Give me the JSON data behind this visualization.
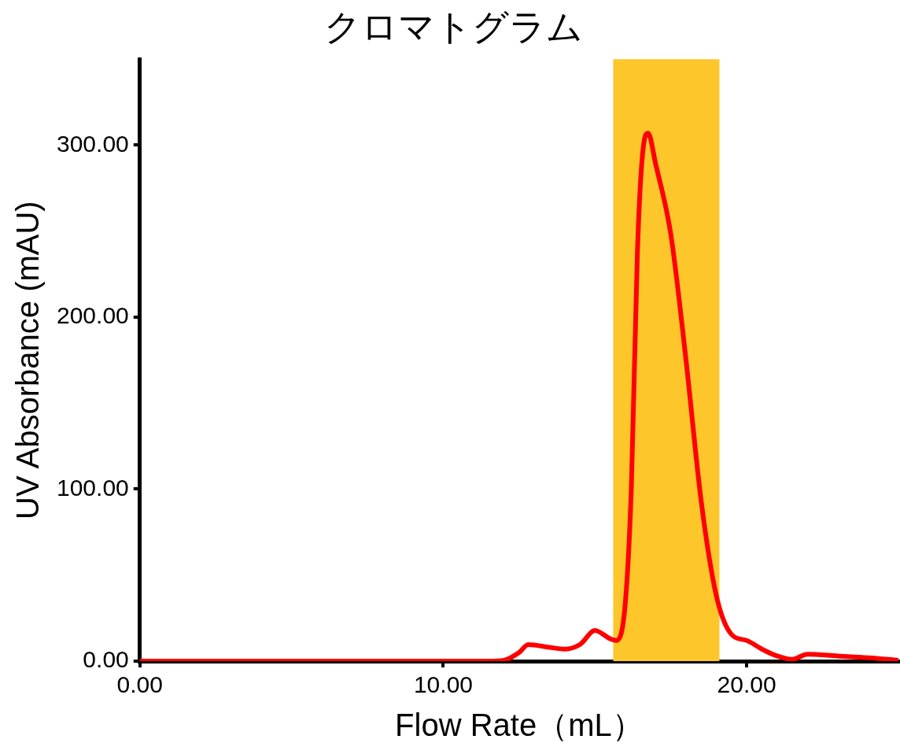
{
  "chart_data": {
    "type": "line",
    "title": "クロマトグラム",
    "xlabel": "Flow Rate（mL）",
    "ylabel": "UV Absorbance (mAU)",
    "series": [
      {
        "color": "#ff0000",
        "x": [
          0,
          5,
          10,
          11.5,
          12,
          12.5,
          12.8,
          13.5,
          14,
          14.5,
          15,
          15.5,
          15.7,
          16,
          16.2,
          16.4,
          16.6,
          16.75,
          17,
          17.5,
          18,
          18.5,
          19,
          19.5,
          20,
          20.5,
          21,
          21.5,
          22,
          23,
          24,
          25
        ],
        "values": [
          0,
          0,
          0,
          0,
          0.5,
          5,
          9.6,
          8,
          7,
          9.6,
          17.8,
          13,
          12,
          34,
          102,
          239,
          300,
          307,
          289,
          248,
          175,
          93,
          38,
          15.5,
          12,
          7,
          3,
          1,
          4,
          3,
          2,
          0.5
        ]
      }
    ],
    "xlim": [
      0,
      25
    ],
    "ylim": [
      0,
      350
    ],
    "xticks": [
      {
        "value": 0,
        "label": "0.00"
      },
      {
        "value": 10,
        "label": "10.00"
      },
      {
        "value": 20,
        "label": "20.00"
      }
    ],
    "yticks": [
      {
        "value": 0,
        "label": "0.00"
      },
      {
        "value": 100,
        "label": "100.00"
      },
      {
        "value": 200,
        "label": "200.00"
      },
      {
        "value": 300,
        "label": "300.00"
      }
    ],
    "bands": [
      {
        "axis": "x",
        "from": 15.6,
        "to": 19.1,
        "color": "#fdc62a"
      }
    ],
    "grid": false,
    "legend": false,
    "marker": "none",
    "line_style": "solid"
  }
}
